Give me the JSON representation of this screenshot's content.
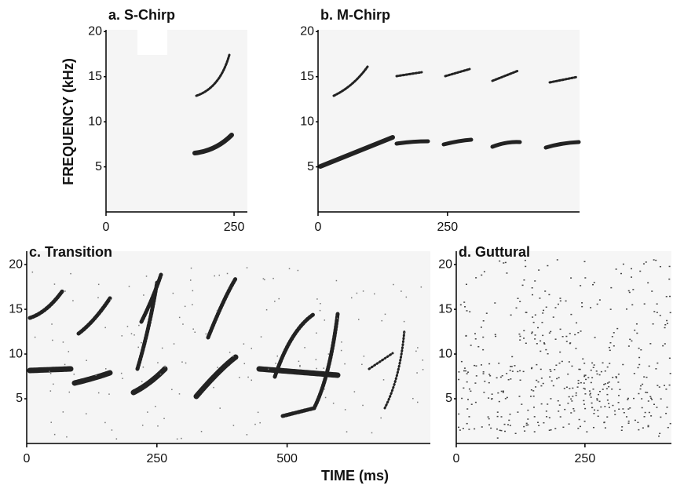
{
  "figure": {
    "ylabel": "FREQUENCY (kHz)",
    "xlabel": "TIME (ms)"
  },
  "chart_data": [
    {
      "type": "spectrogram",
      "title": "a. S-Chirp",
      "xlim": [
        0,
        276
      ],
      "xticks": [
        0,
        250
      ],
      "ylim": [
        0,
        20.2
      ],
      "yticks": [
        5,
        10,
        15,
        20
      ]
    },
    {
      "type": "spectrogram",
      "title": "b. M-Chirp",
      "xlim": [
        0,
        505
      ],
      "xticks": [
        0,
        250
      ],
      "ylim": [
        0,
        20.2
      ],
      "yticks": [
        5,
        10,
        15,
        20
      ]
    },
    {
      "type": "spectrogram",
      "title": "c. Transition",
      "xlim": [
        0,
        775
      ],
      "xticks": [
        0,
        250,
        500
      ],
      "ylim": [
        0,
        21.5
      ],
      "yticks": [
        5,
        10,
        15,
        20
      ]
    },
    {
      "type": "spectrogram",
      "title": "d. Guttural",
      "xlim": [
        0,
        418
      ],
      "xticks": [
        0,
        250
      ],
      "ylim": [
        0,
        21.5
      ],
      "yticks": [
        5,
        10,
        15,
        20
      ]
    }
  ]
}
